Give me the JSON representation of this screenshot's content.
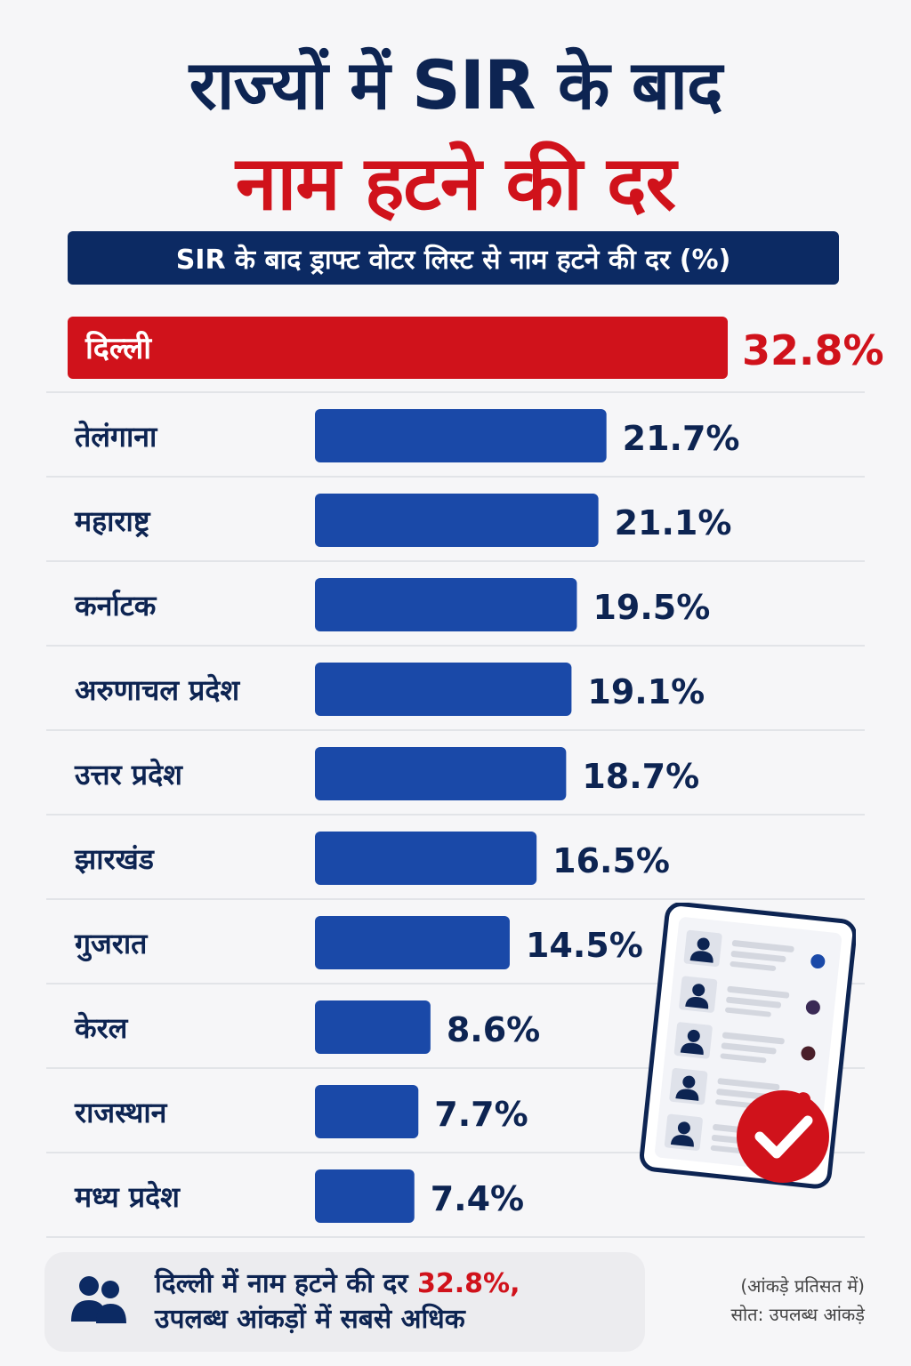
{
  "header": {
    "title_line1": "राज्यों में SIR के बाद",
    "title_line2": "नाम हटने की दर",
    "subtitle": "SIR के बाद ड्राफ्ट वोटर लिस्ट से नाम हटने की दर (%)"
  },
  "colors": {
    "navy": "#0c2a63",
    "bar_blue": "#1a49a8",
    "highlight_red": "#d0121b",
    "title_navy": "#0d2452"
  },
  "chart_data": {
    "type": "bar",
    "orientation": "horizontal",
    "unit": "%",
    "categories": [
      "दिल्ली",
      "तेलंगाना",
      "महाराष्ट्र",
      "कर्नाटक",
      "अरुणाचल प्रदेश",
      "उत्तर प्रदेश",
      "झारखंड",
      "गुजरात",
      "केरल",
      "राजस्थान",
      "मध्य प्रदेश"
    ],
    "values": [
      32.8,
      21.7,
      21.1,
      19.5,
      19.1,
      18.7,
      16.5,
      14.5,
      8.6,
      7.7,
      7.4
    ],
    "value_labels": [
      "32.8%",
      "21.7%",
      "21.1%",
      "19.5%",
      "19.1%",
      "18.7%",
      "16.5%",
      "14.5%",
      "8.6%",
      "7.7%",
      "7.4%"
    ],
    "highlighted_category": "दिल्ली",
    "grid": false,
    "legend": "none"
  },
  "footer": {
    "text_part1": "दिल्ली में नाम हटने की दर ",
    "text_highlight": "32.8%,",
    "text_part2": "उपलब्ध आंकड़ों में सबसे अधिक",
    "note_line1": "(आंकड़े प्रतिसत में)",
    "note_line2": "सोत: उपलब्ध आंकड़े",
    "icon": "people-icon"
  },
  "illustration": {
    "icon": "voter-list-checklist-icon",
    "check_icon": "check-icon"
  }
}
